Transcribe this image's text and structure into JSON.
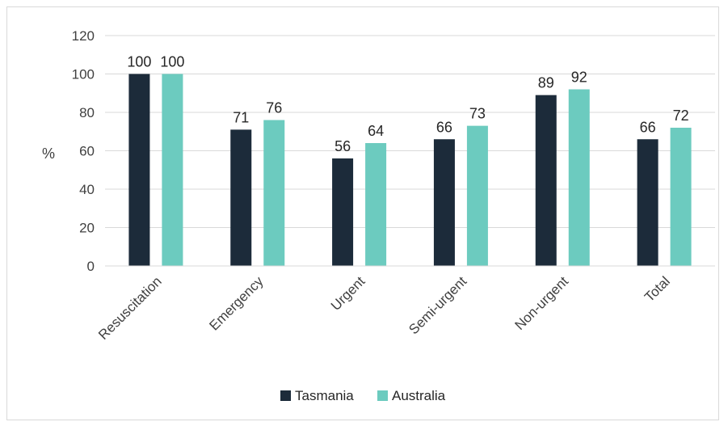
{
  "chart_data": {
    "type": "bar",
    "categories": [
      "Resuscitation",
      "Emergency",
      "Urgent",
      "Semi-urgent",
      "Non-urgent",
      "Total"
    ],
    "series": [
      {
        "name": "Tasmania",
        "values": [
          100,
          71,
          56,
          66,
          89,
          66
        ],
        "color": "#1c2b3a"
      },
      {
        "name": "Australia",
        "values": [
          100,
          76,
          64,
          73,
          92,
          72
        ],
        "color": "#6ccbbf"
      }
    ],
    "title": "",
    "xlabel": "",
    "ylabel": "%",
    "ylim": [
      0,
      120
    ],
    "yticks": [
      0,
      20,
      40,
      60,
      80,
      100,
      120
    ],
    "grid": true,
    "legend_position": "bottom",
    "data_labels": true
  }
}
